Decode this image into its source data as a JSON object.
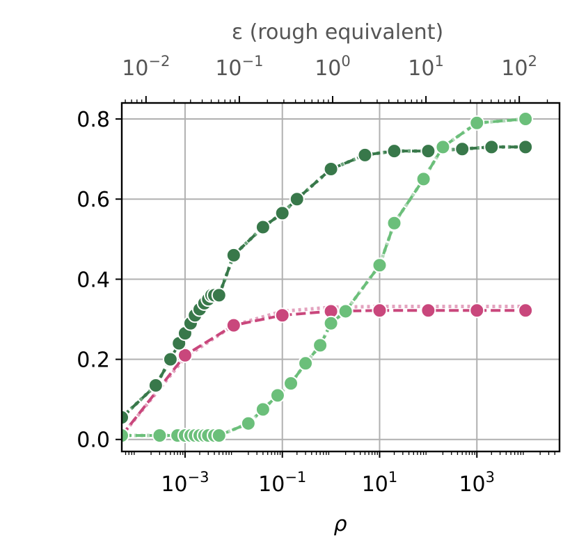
{
  "chart_data": {
    "type": "line",
    "xlabel": "ρ",
    "x2label": "ε (rough equivalent)",
    "xscale": "log",
    "x2scale": "log",
    "xlim": [
      5e-05,
      50000
    ],
    "ylim": [
      -0.03,
      0.84
    ],
    "x2lim": [
      0.0055,
      270
    ],
    "xticks": [
      {
        "value": 0.001,
        "base": "10",
        "exp": "−3"
      },
      {
        "value": 0.1,
        "base": "10",
        "exp": "−1"
      },
      {
        "value": 10,
        "base": "10",
        "exp": "1"
      },
      {
        "value": 1000,
        "base": "10",
        "exp": "3"
      }
    ],
    "x2ticks": [
      {
        "value": 0.01,
        "base": "10",
        "exp": "−2"
      },
      {
        "value": 0.1,
        "base": "10",
        "exp": "−1"
      },
      {
        "value": 1,
        "base": "10",
        "exp": "0"
      },
      {
        "value": 10,
        "base": "10",
        "exp": "1"
      },
      {
        "value": 100,
        "base": "10",
        "exp": "2"
      }
    ],
    "yticks": [
      {
        "value": 0.0,
        "label": "0.0"
      },
      {
        "value": 0.2,
        "label": "0.2"
      },
      {
        "value": 0.4,
        "label": "0.4"
      },
      {
        "value": 0.6,
        "label": "0.6"
      },
      {
        "value": 0.8,
        "label": "0.8"
      }
    ],
    "grid": true,
    "series": [
      {
        "color": "#c9477c",
        "ref_color": "#e3a3bf",
        "x": [
          5e-05,
          0.001,
          0.01,
          0.1,
          1,
          10,
          100,
          1000,
          10000
        ],
        "y": [
          0.01,
          0.21,
          0.285,
          0.31,
          0.32,
          0.322,
          0.322,
          0.322,
          0.322
        ],
        "ref": [
          0.01,
          0.205,
          0.285,
          0.32,
          0.33,
          0.332,
          0.332,
          0.332,
          0.332
        ]
      },
      {
        "color": "#38784a",
        "ref_color": "#6ea67d",
        "x": [
          5e-05,
          0.00025,
          0.0005,
          0.00075,
          0.001,
          0.0013,
          0.0016,
          0.002,
          0.0025,
          0.003,
          0.0035,
          0.004,
          0.005,
          0.01,
          0.04,
          0.1,
          0.2,
          1,
          5,
          20,
          100,
          500,
          2000,
          10000
        ],
        "y": [
          0.055,
          0.135,
          0.2,
          0.24,
          0.265,
          0.29,
          0.31,
          0.325,
          0.34,
          0.35,
          0.36,
          0.36,
          0.36,
          0.46,
          0.53,
          0.565,
          0.6,
          0.675,
          0.71,
          0.72,
          0.72,
          0.725,
          0.73,
          0.73
        ],
        "ref": [
          0.055,
          0.135,
          0.2,
          0.24,
          0.265,
          0.29,
          0.31,
          0.325,
          0.34,
          0.35,
          0.36,
          0.36,
          0.36,
          0.46,
          0.53,
          0.565,
          0.6,
          0.675,
          0.71,
          0.72,
          0.72,
          0.725,
          0.73,
          0.73
        ]
      },
      {
        "color": "#6bbf7a",
        "ref_color": "#b5d8bb",
        "x": [
          5e-05,
          0.0003,
          0.0007,
          0.001,
          0.0013,
          0.0016,
          0.002,
          0.0025,
          0.003,
          0.004,
          0.005,
          0.02,
          0.04,
          0.08,
          0.15,
          0.3,
          0.6,
          1,
          2,
          10,
          20,
          80,
          200,
          1000,
          10000
        ],
        "y": [
          0.01,
          0.01,
          0.01,
          0.01,
          0.01,
          0.01,
          0.01,
          0.01,
          0.01,
          0.01,
          0.01,
          0.04,
          0.075,
          0.11,
          0.14,
          0.19,
          0.235,
          0.29,
          0.32,
          0.435,
          0.54,
          0.65,
          0.73,
          0.79,
          0.8
        ],
        "ref": [
          0.01,
          0.01,
          0.01,
          0.01,
          0.01,
          0.01,
          0.01,
          0.01,
          0.01,
          0.01,
          0.01,
          0.04,
          0.075,
          0.11,
          0.14,
          0.19,
          0.235,
          0.29,
          0.32,
          0.435,
          0.54,
          0.65,
          0.73,
          0.79,
          0.8
        ]
      }
    ]
  }
}
